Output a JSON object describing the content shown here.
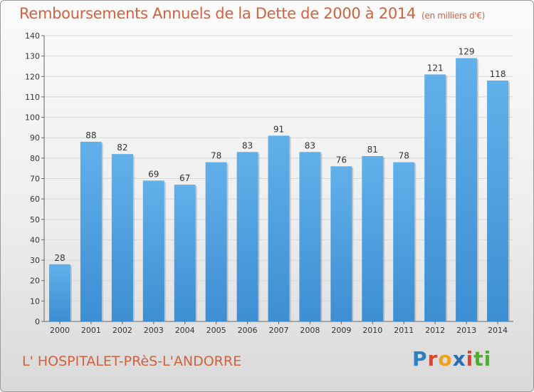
{
  "title": "Remboursements Annuels de la Dette de 2000 à 2014",
  "unit": "(en milliers d'€)",
  "location": "L' HOSPITALET-PRèS-L'ANDORRE",
  "logo": [
    "P",
    "r",
    "o",
    "x",
    "i",
    "ti"
  ],
  "colors": {
    "bar": "#3d8ed3",
    "bar_light": "#62b0ea",
    "title": "#d2613d"
  },
  "chart_data": {
    "type": "bar",
    "categories": [
      "2000",
      "2001",
      "2002",
      "2003",
      "2004",
      "2005",
      "2006",
      "2007",
      "2008",
      "2009",
      "2010",
      "2011",
      "2012",
      "2013",
      "2014"
    ],
    "values": [
      28,
      88,
      82,
      69,
      67,
      78,
      83,
      91,
      83,
      76,
      81,
      78,
      121,
      129,
      118
    ],
    "ylim": [
      0,
      140
    ],
    "yticks": [
      0,
      10,
      20,
      30,
      40,
      50,
      60,
      70,
      80,
      90,
      100,
      110,
      120,
      130,
      140
    ],
    "grid": true
  }
}
